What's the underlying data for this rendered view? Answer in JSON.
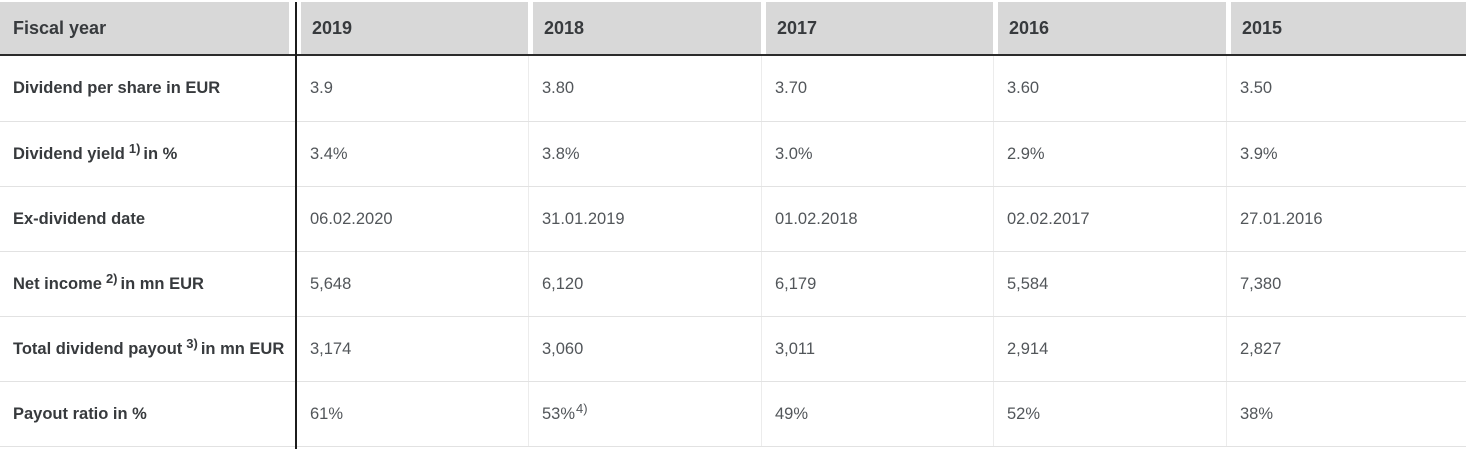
{
  "colors": {
    "header_bg": "#d8d8d8",
    "header_text": "#373a3d",
    "label_text": "#373a3d",
    "value_text": "#52565a",
    "dark_divider": "#1c1c1c",
    "header_underline": "#2b2b2b",
    "row_separator": "#e2e2e2",
    "column_separator": "#ececec"
  },
  "table": {
    "corner_label": "Fiscal year",
    "years": [
      "2019",
      "2018",
      "2017",
      "2016",
      "2015"
    ],
    "rows": [
      {
        "label_pre": "Dividend per share in EUR",
        "label_sup": "",
        "label_post": "",
        "values": [
          {
            "text": "3.9",
            "sup": ""
          },
          {
            "text": "3.80",
            "sup": ""
          },
          {
            "text": "3.70",
            "sup": ""
          },
          {
            "text": "3.60",
            "sup": ""
          },
          {
            "text": "3.50",
            "sup": ""
          }
        ]
      },
      {
        "label_pre": "Dividend yield",
        "label_sup": "1)",
        "label_post": "in %",
        "values": [
          {
            "text": "3.4%",
            "sup": ""
          },
          {
            "text": "3.8%",
            "sup": ""
          },
          {
            "text": "3.0%",
            "sup": ""
          },
          {
            "text": "2.9%",
            "sup": ""
          },
          {
            "text": "3.9%",
            "sup": ""
          }
        ]
      },
      {
        "label_pre": "Ex-dividend date",
        "label_sup": "",
        "label_post": "",
        "values": [
          {
            "text": "06.02.2020",
            "sup": ""
          },
          {
            "text": "31.01.2019",
            "sup": ""
          },
          {
            "text": "01.02.2018",
            "sup": ""
          },
          {
            "text": "02.02.2017",
            "sup": ""
          },
          {
            "text": "27.01.2016",
            "sup": ""
          }
        ]
      },
      {
        "label_pre": "Net income",
        "label_sup": "2)",
        "label_post": "in mn EUR",
        "values": [
          {
            "text": "5,648",
            "sup": ""
          },
          {
            "text": "6,120",
            "sup": ""
          },
          {
            "text": "6,179",
            "sup": ""
          },
          {
            "text": "5,584",
            "sup": ""
          },
          {
            "text": "7,380",
            "sup": ""
          }
        ]
      },
      {
        "label_pre": "Total dividend payout",
        "label_sup": "3)",
        "label_post": "in mn EUR",
        "values": [
          {
            "text": "3,174",
            "sup": ""
          },
          {
            "text": "3,060",
            "sup": ""
          },
          {
            "text": "3,011",
            "sup": ""
          },
          {
            "text": "2,914",
            "sup": ""
          },
          {
            "text": "2,827",
            "sup": ""
          }
        ]
      },
      {
        "label_pre": "Payout ratio in %",
        "label_sup": "",
        "label_post": "",
        "values": [
          {
            "text": "61%",
            "sup": ""
          },
          {
            "text": "53%",
            "sup": "4)"
          },
          {
            "text": "49%",
            "sup": ""
          },
          {
            "text": "52%",
            "sup": ""
          },
          {
            "text": "38%",
            "sup": ""
          }
        ]
      }
    ]
  }
}
